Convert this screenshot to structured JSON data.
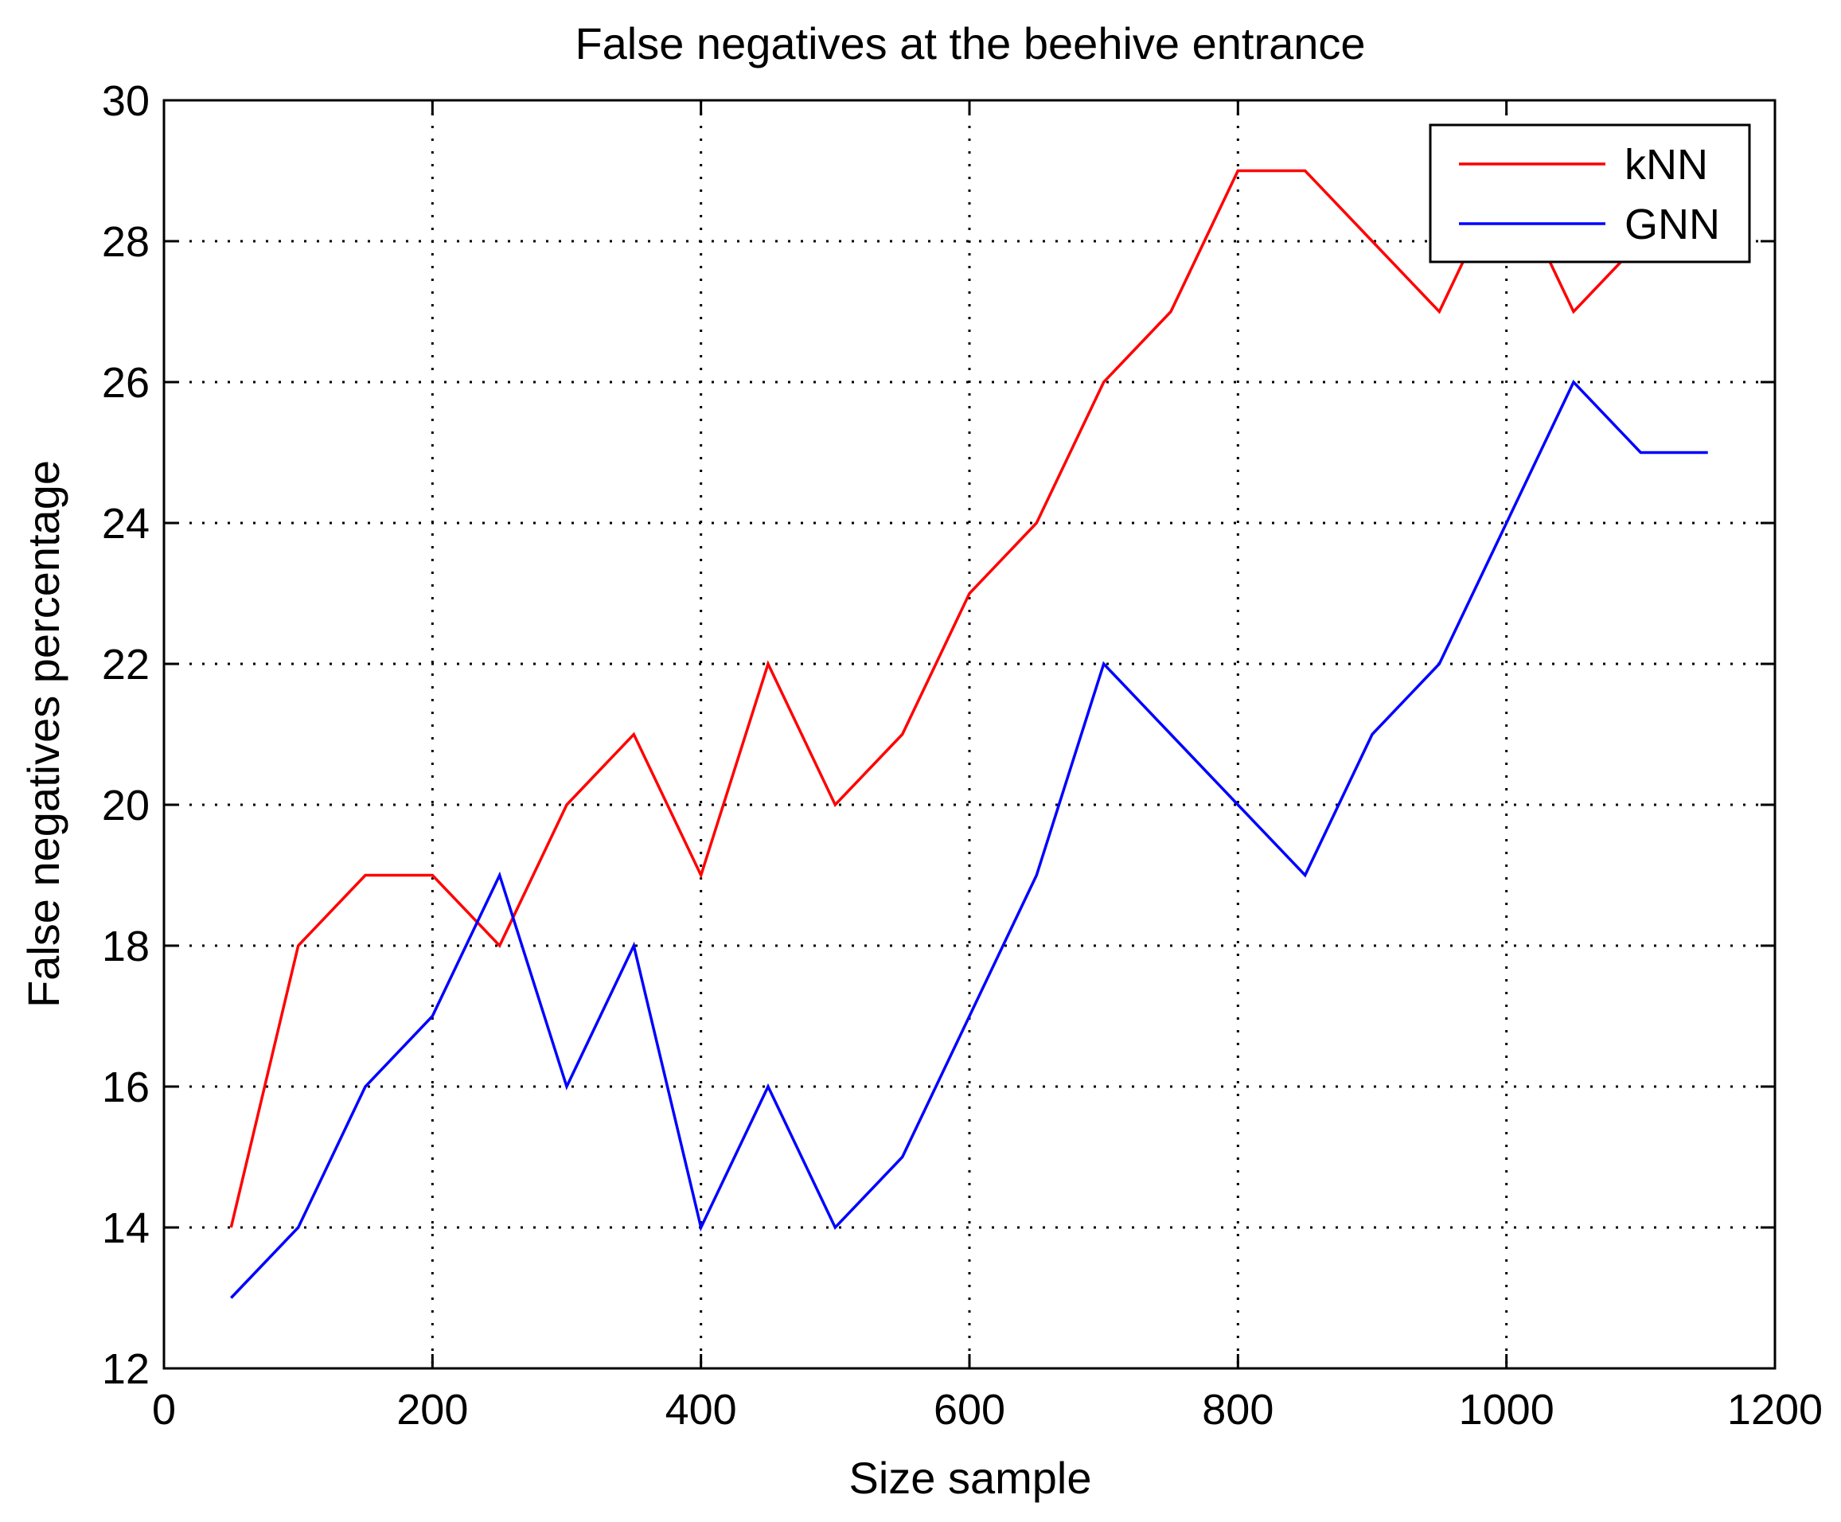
{
  "chart_data": {
    "type": "line",
    "title": "False negatives at the beehive entrance",
    "xlabel": "Size sample",
    "ylabel": "False negatives percentage",
    "xlim": [
      0,
      1200
    ],
    "ylim": [
      12,
      30
    ],
    "xticks": [
      0,
      200,
      400,
      600,
      800,
      1000,
      1200
    ],
    "yticks": [
      12,
      14,
      16,
      18,
      20,
      22,
      24,
      26,
      28,
      30
    ],
    "grid": true,
    "legend_position": "top-right",
    "series": [
      {
        "name": "kNN",
        "color": "#ff0000",
        "x": [
          50,
          100,
          150,
          200,
          250,
          300,
          350,
          400,
          450,
          500,
          550,
          600,
          650,
          700,
          750,
          800,
          850,
          900,
          950,
          1000,
          1050,
          1100,
          1150
        ],
        "y": [
          14,
          18,
          19,
          19,
          18,
          20,
          21,
          19,
          22,
          20,
          21,
          23,
          24,
          26,
          27,
          29,
          29,
          28,
          27,
          29,
          27,
          28,
          28
        ]
      },
      {
        "name": "GNN",
        "color": "#0000ff",
        "x": [
          50,
          100,
          150,
          200,
          250,
          300,
          350,
          400,
          450,
          500,
          550,
          600,
          650,
          700,
          750,
          800,
          850,
          900,
          950,
          1000,
          1050,
          1100,
          1150
        ],
        "y": [
          13,
          14,
          16,
          17,
          19,
          16,
          18,
          14,
          16,
          14,
          15,
          17,
          19,
          22,
          21,
          20,
          19,
          21,
          22,
          24,
          26,
          25,
          25
        ]
      }
    ]
  }
}
